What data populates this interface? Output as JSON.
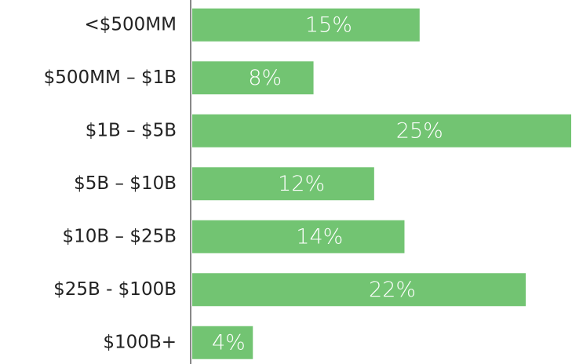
{
  "chart_data": {
    "type": "bar",
    "orientation": "horizontal",
    "categories": [
      "<$500MM",
      "$500MM – $1B",
      "$1B – $5B",
      "$5B – $10B",
      "$10B – $25B",
      "$25B - $100B",
      "$100B+"
    ],
    "values": [
      15,
      8,
      25,
      12,
      14,
      22,
      4
    ],
    "value_labels": [
      "15%",
      "8%",
      "25%",
      "12%",
      "14%",
      "22%",
      "4%"
    ],
    "color": "#72c472"
  }
}
